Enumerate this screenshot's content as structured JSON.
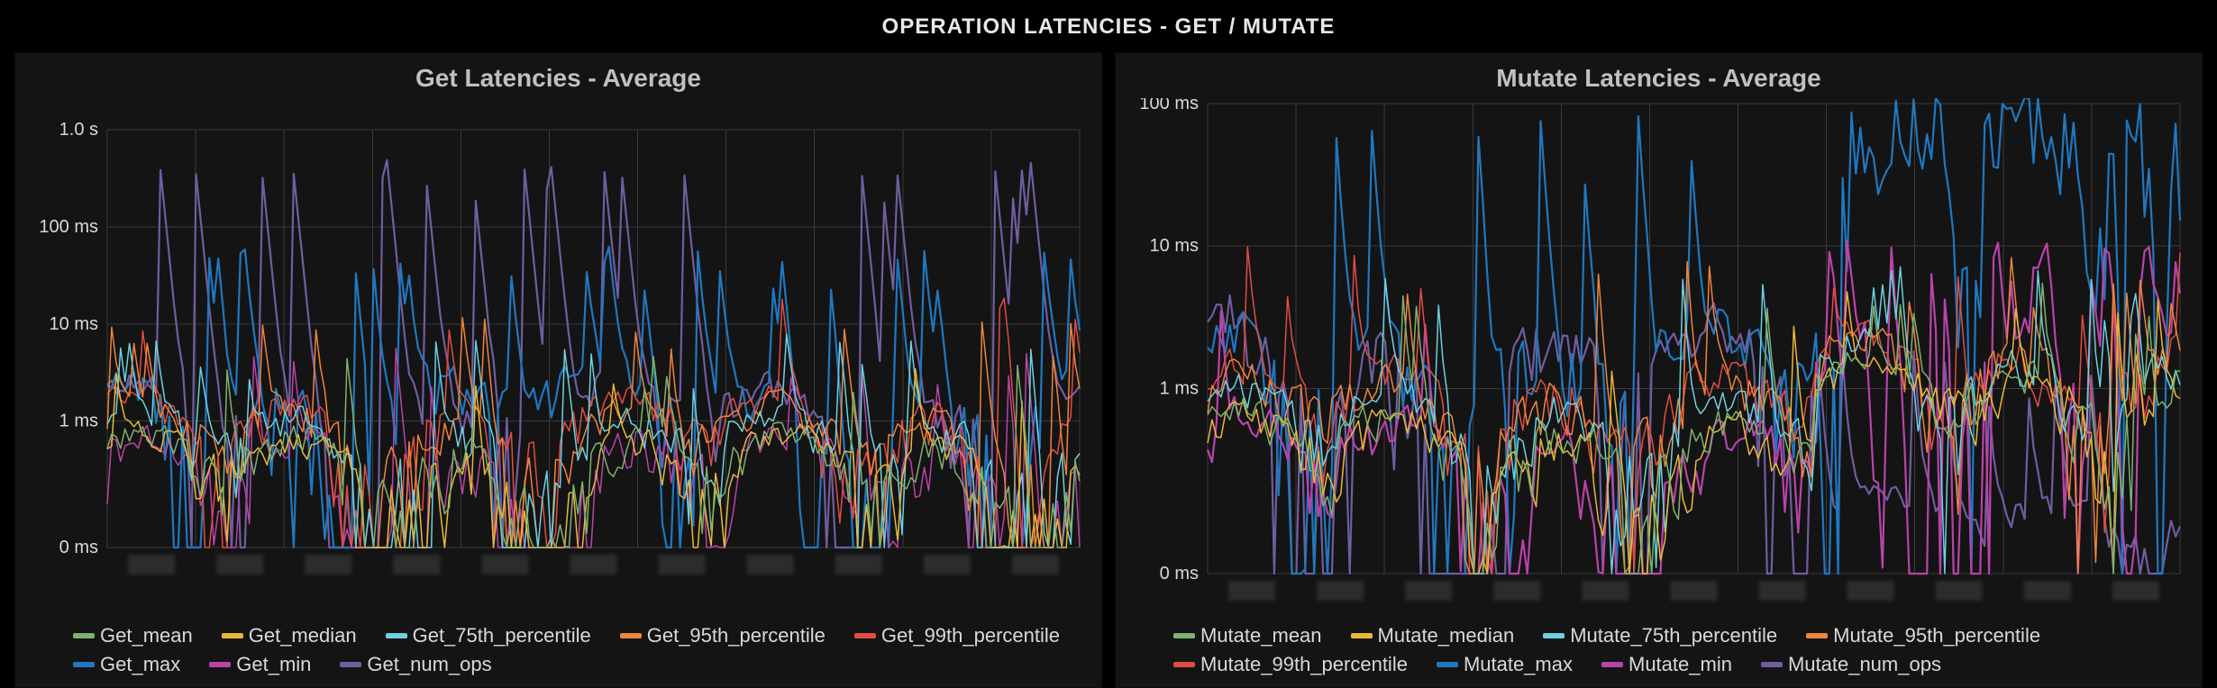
{
  "title": "OPERATION LATENCIES - GET / MUTATE",
  "background_color": "#000000",
  "panel_background": "#141414",
  "grid_color": "#3a3a3a",
  "text_color": "#d8d9da",
  "title_color": "#bfc0c2",
  "title_fontsize": 24,
  "panel_title_fontsize": 28,
  "axis_fontsize": 20,
  "legend_fontsize": 22,
  "series_colors": {
    "mean": "#7eb26d",
    "median": "#eab839",
    "p75": "#6ed0e0",
    "p95": "#ef843c",
    "p99": "#e24d42",
    "max": "#1f78c1",
    "min": "#ba43a9",
    "numops": "#705da0"
  },
  "panels": [
    {
      "id": "get",
      "title": "Get Latencies - Average",
      "yaxis": {
        "scale": "log",
        "ticks": [
          {
            "v": 0,
            "label": "0 ms"
          },
          {
            "v": 1,
            "label": "1 ms"
          },
          {
            "v": 10,
            "label": "10 ms"
          },
          {
            "v": 100,
            "label": "100 ms"
          },
          {
            "v": 1000,
            "label": "1.0 s"
          }
        ],
        "max": 1000
      },
      "xticks": 11,
      "legend": [
        {
          "key": "mean",
          "label": "Get_mean"
        },
        {
          "key": "median",
          "label": "Get_median"
        },
        {
          "key": "p75",
          "label": "Get_75th_percentile"
        },
        {
          "key": "p95",
          "label": "Get_95th_percentile"
        },
        {
          "key": "p99",
          "label": "Get_99th_percentile"
        },
        {
          "key": "max",
          "label": "Get_max"
        },
        {
          "key": "min",
          "label": "Get_min"
        },
        {
          "key": "numops",
          "label": "Get_num_ops"
        }
      ],
      "n_points": 220,
      "series_params": {
        "min": {
          "base": 0.25,
          "amp": 0.6,
          "spike_p": 0.05,
          "spike_mag": 4,
          "thick": false
        },
        "mean": {
          "base": 0.35,
          "amp": 0.5,
          "spike_p": 0.04,
          "spike_mag": 3,
          "thick": false
        },
        "median": {
          "base": 0.3,
          "amp": 0.5,
          "spike_p": 0.04,
          "spike_mag": 2.5,
          "thick": false
        },
        "p75": {
          "base": 0.55,
          "amp": 0.8,
          "spike_p": 0.06,
          "spike_mag": 5,
          "thick": false
        },
        "p95": {
          "base": 0.7,
          "amp": 1.0,
          "spike_p": 0.07,
          "spike_mag": 8,
          "thick": false
        },
        "p99": {
          "base": 0.8,
          "amp": 1.2,
          "spike_p": 0.06,
          "spike_mag": 12,
          "thick": false
        },
        "max": {
          "base": 1.2,
          "amp": 2.5,
          "spike_p": 0.1,
          "spike_mag": 40,
          "thick": true
        },
        "numops": {
          "base": 1.0,
          "amp": 2.0,
          "spike_p": 0.1,
          "spike_mag": 300,
          "thick": true
        }
      },
      "rng_seed": 17
    },
    {
      "id": "mutate",
      "title": "Mutate Latencies - Average",
      "yaxis": {
        "scale": "log",
        "ticks": [
          {
            "v": 0,
            "label": "0 ms"
          },
          {
            "v": 1,
            "label": "1 ms"
          },
          {
            "v": 10,
            "label": "10 ms"
          },
          {
            "v": 100,
            "label": "100 ms"
          }
        ],
        "max": 100
      },
      "xticks": 11,
      "legend": [
        {
          "key": "mean",
          "label": "Mutate_mean"
        },
        {
          "key": "median",
          "label": "Mutate_median"
        },
        {
          "key": "p75",
          "label": "Mutate_75th_percentile"
        },
        {
          "key": "p95",
          "label": "Mutate_95th_percentile"
        },
        {
          "key": "p99",
          "label": "Mutate_99th_percentile"
        },
        {
          "key": "max",
          "label": "Mutate_max"
        },
        {
          "key": "min",
          "label": "Mutate_min"
        },
        {
          "key": "numops",
          "label": "Mutate_num_ops"
        }
      ],
      "n_points": 220,
      "regime_change_at": 0.62,
      "series_params": {
        "min": {
          "base_a": 0.3,
          "amp_a": 0.45,
          "spike_a": 0.02,
          "base_b": 1.2,
          "amp_b": 3.0,
          "spike_b": 0.25,
          "spike_mag": 6,
          "thick": true
        },
        "mean": {
          "base_a": 0.4,
          "amp_a": 0.4,
          "spike_a": 0.02,
          "base_b": 1.0,
          "amp_b": 0.8,
          "spike_b": 0.05,
          "spike_mag": 3,
          "thick": false
        },
        "median": {
          "base_a": 0.35,
          "amp_a": 0.35,
          "spike_a": 0.02,
          "base_b": 0.9,
          "amp_b": 0.7,
          "spike_b": 0.05,
          "spike_mag": 2.5,
          "thick": false
        },
        "p75": {
          "base_a": 0.55,
          "amp_a": 0.55,
          "spike_a": 0.03,
          "base_b": 1.2,
          "amp_b": 1.2,
          "spike_b": 0.07,
          "spike_mag": 4,
          "thick": false
        },
        "p95": {
          "base_a": 0.7,
          "amp_a": 0.7,
          "spike_a": 0.03,
          "base_b": 1.3,
          "amp_b": 1.2,
          "spike_b": 0.07,
          "spike_mag": 5,
          "thick": false
        },
        "p99": {
          "base_a": 0.8,
          "amp_a": 0.8,
          "spike_a": 0.03,
          "base_b": 1.4,
          "amp_b": 1.3,
          "spike_b": 0.07,
          "spike_mag": 6,
          "thick": false
        },
        "max": {
          "base_a": 1.2,
          "amp_a": 2.0,
          "spike_a": 0.06,
          "base_b": 6.0,
          "amp_b": 25.0,
          "spike_b": 0.35,
          "spike_mag": 60,
          "thick": true
        },
        "numops": {
          "base_a": 0.8,
          "amp_a": 2.5,
          "spike_a": 0.07,
          "base_b": 0.12,
          "amp_b": 0.07,
          "spike_b": 0.04,
          "spike_mag": 1.2,
          "thick": true
        }
      },
      "rng_seed": 43
    }
  ]
}
